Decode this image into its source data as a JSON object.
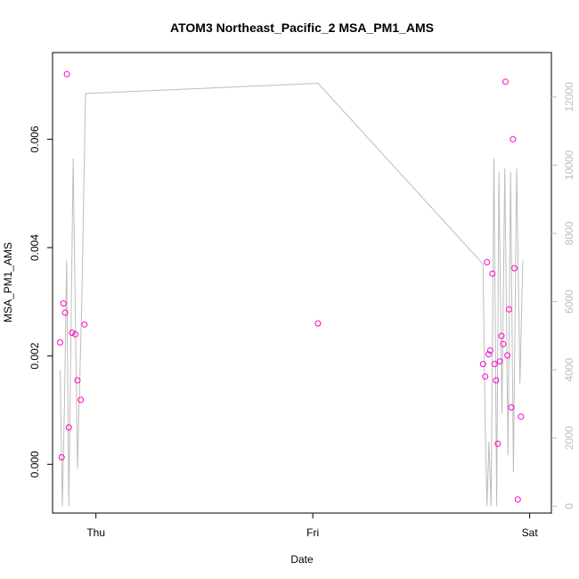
{
  "chart_data": {
    "type": "scatter",
    "title": "ATOM3 Northeast_Pacific_2 MSA_PM1_AMS",
    "xlabel": "Date",
    "ylabel": "MSA_PM1_AMS",
    "x_ticks": [
      "Thu",
      "Fri",
      "Sat"
    ],
    "x_tick_positions_days": [
      1,
      2,
      3
    ],
    "xlim_days": [
      0.8,
      3.1
    ],
    "ylim": [
      -0.0009,
      0.0076
    ],
    "y_ticks": [
      "0.000",
      "0.002",
      "0.004",
      "0.006"
    ],
    "y_tick_values": [
      0,
      0.002,
      0.004,
      0.006
    ],
    "y2lim": [
      -200,
      13300
    ],
    "y2_ticks": [
      "0",
      "2000",
      "4000",
      "6000",
      "8000",
      "10000",
      "12000"
    ],
    "y2_tick_values": [
      0,
      2000,
      4000,
      6000,
      8000,
      10000,
      12000
    ],
    "grid": false,
    "colors": {
      "points": "#ff00cc",
      "line": "#bdbdbd",
      "right_axis": "#bdbdbd",
      "axis": "#000000"
    },
    "series": [
      {
        "marker": "circle",
        "x": [
          0.835,
          0.842,
          0.85,
          0.858,
          0.866,
          0.875,
          0.89,
          0.905,
          0.915,
          0.93,
          0.947,
          2.024,
          2.785,
          2.795,
          2.803,
          2.81,
          2.818,
          2.828,
          2.838,
          2.845,
          2.853,
          2.862,
          2.87,
          2.878,
          2.888,
          2.897,
          2.905,
          2.915,
          2.923,
          2.93,
          2.945,
          2.96
        ],
        "y": [
          0.00225,
          0.00013,
          0.00297,
          0.0028,
          0.0072,
          0.00068,
          0.00243,
          0.0024,
          0.00155,
          0.00119,
          0.00258,
          0.0026,
          0.00185,
          0.00162,
          0.00373,
          0.00203,
          0.0021,
          0.00352,
          0.00185,
          0.00155,
          0.00038,
          0.0019,
          0.00237,
          0.00222,
          0.00706,
          0.00201,
          0.00286,
          0.00105,
          0.006,
          0.00362,
          -0.00065,
          0.00088
        ]
      },
      {
        "name": "",
        "axis": "right",
        "type": "line",
        "x": [
          0.835,
          0.845,
          0.855,
          0.865,
          0.875,
          0.895,
          0.915,
          0.935,
          0.952,
          2.024,
          2.785,
          2.795,
          2.803,
          2.812,
          2.822,
          2.835,
          2.848,
          2.858,
          2.872,
          2.885,
          2.9,
          2.912,
          2.925,
          2.94,
          2.955,
          2.968
        ],
        "y": [
          4000,
          0,
          3000,
          7200,
          0,
          10200,
          1100,
          6100,
          12100,
          12400,
          7100,
          2300,
          0,
          1900,
          0,
          10200,
          0,
          9800,
          2700,
          9900,
          1500,
          9800,
          1000,
          9900,
          3600,
          7200
        ]
      }
    ]
  }
}
